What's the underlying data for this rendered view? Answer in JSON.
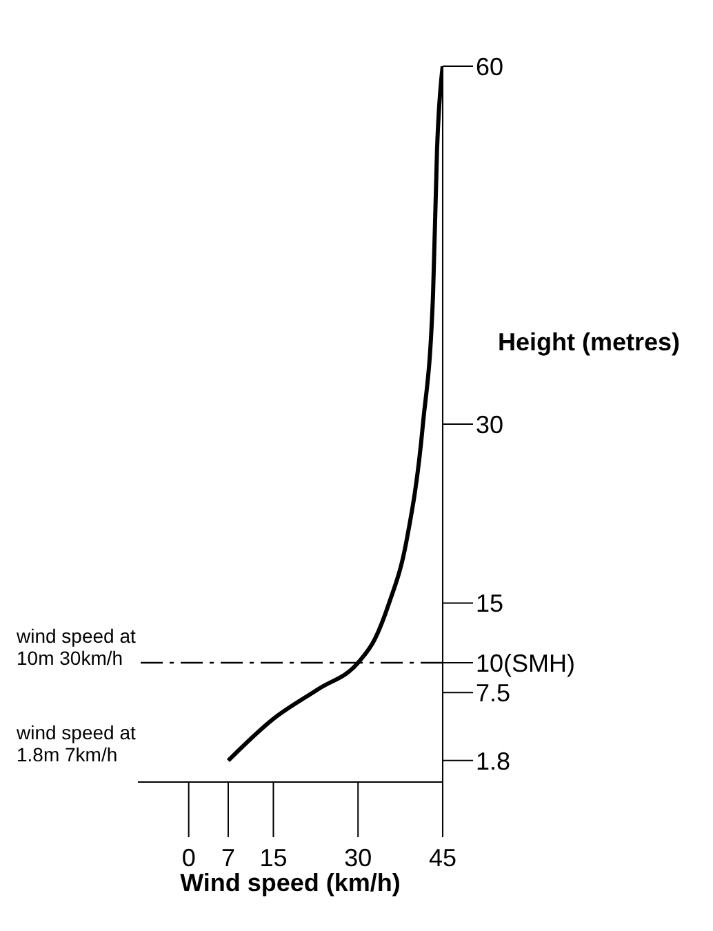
{
  "chart_data": {
    "type": "line",
    "xlabel": "Wind speed (km/h)",
    "ylabel": "Height (metres)",
    "x": [
      7,
      15,
      23,
      30,
      33,
      35.5,
      38.5,
      41.5,
      43.3,
      44,
      45
    ],
    "values": [
      1.8,
      5.3,
      7.8,
      10,
      12,
      15,
      20,
      30,
      41,
      53,
      60
    ],
    "color": "#000000",
    "marker": "none",
    "line_style": "solid",
    "xlim": [
      -9,
      45
    ],
    "xticks": [
      0,
      7,
      15,
      30,
      45
    ],
    "ylim": [
      0,
      60
    ],
    "yticks": [
      1.8,
      7.5,
      {
        "value": 10,
        "label": "10(SMH)"
      },
      15,
      30,
      60
    ],
    "ref_lines": [
      {
        "axis": "y",
        "value": 10,
        "line_style": "dashdot",
        "color": "#000000"
      }
    ],
    "annotations": [
      "wind speed at 10m 30km/h",
      "wind speed at 1.8m 7km/h"
    ]
  }
}
